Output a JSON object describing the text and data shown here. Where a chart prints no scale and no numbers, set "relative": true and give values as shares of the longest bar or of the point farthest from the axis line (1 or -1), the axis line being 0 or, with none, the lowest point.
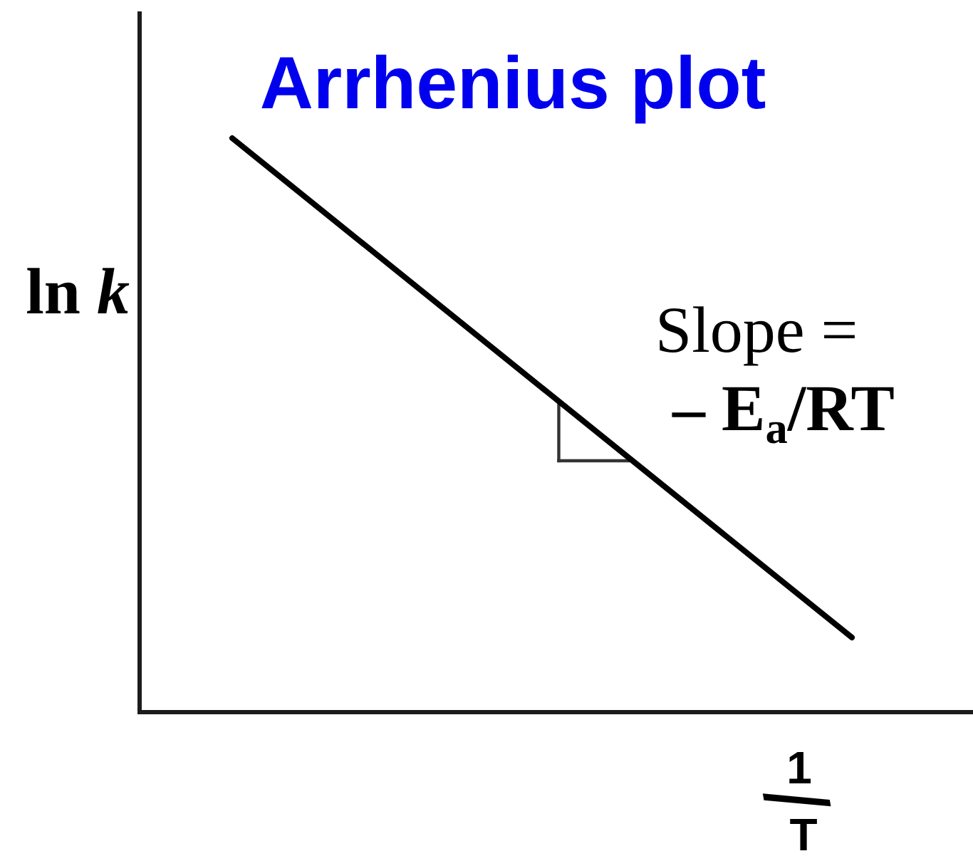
{
  "chart_data": {
    "type": "line",
    "title": "Arrhenius plot",
    "xlabel": "1/T",
    "ylabel": "ln k",
    "categories": [
      null,
      null
    ],
    "values": [
      1,
      0.13
    ],
    "color": "#000000",
    "relative": true,
    "annotations": [
      "Slope =",
      "– E$_{a}$/RT"
    ]
  }
}
